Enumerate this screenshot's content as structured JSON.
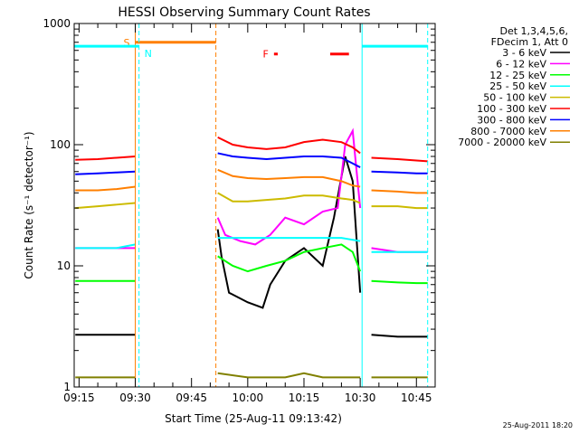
{
  "chart_data": {
    "type": "line",
    "title": "HESSI Observing Summary Count Rates",
    "xlabel": "Start Time (25-Aug-11 09:13:42)",
    "ylabel": "Count Rate (s⁻¹ detector⁻¹)",
    "y_scale": "log",
    "ylim": [
      1,
      1000
    ],
    "xlim": [
      "09:13:42",
      "10:50:00"
    ],
    "x_ticks": [
      "09:15",
      "09:30",
      "09:45",
      "10:00",
      "10:15",
      "10:30",
      "10:45"
    ],
    "y_ticks": [
      "1",
      "10",
      "100",
      "1000"
    ],
    "legend_position": "right",
    "legend_header": [
      "Det 1,3,4,5,6,",
      "FDecim 1, Att 0"
    ],
    "footer_date": "25-Aug-2011 18:20",
    "data_gaps": [
      [
        "09:31:00",
        "09:52:00"
      ],
      [
        "10:30:30",
        "10:33:00"
      ]
    ],
    "flags": {
      "saa": {
        "label": "S",
        "color": "#ff7f00",
        "start": "09:30:00",
        "end": "09:51:30",
        "level": 700
      },
      "night": {
        "label": "N",
        "color": "#00ffff",
        "intervals": [
          [
            "09:13:42",
            "09:31:00"
          ],
          [
            "10:30:30",
            "10:48:00"
          ]
        ],
        "level": 650
      },
      "flare": {
        "label": "F",
        "color": "#ff0000",
        "intervals": [
          [
            "10:07:00",
            "10:08:00"
          ],
          [
            "10:22:00",
            "10:27:00"
          ]
        ],
        "level": 560
      }
    },
    "series": [
      {
        "name": "3 - 6 keV",
        "color": "#000000",
        "x": [
          "09:14",
          "09:20",
          "09:25",
          "09:30",
          "09:52",
          "09:53",
          "09:55",
          "10:00",
          "10:04",
          "10:06",
          "10:10",
          "10:15",
          "10:20",
          "10:23",
          "10:26",
          "10:28",
          "10:30",
          "10:33",
          "10:40",
          "10:45",
          "10:48"
        ],
        "values": [
          2.7,
          2.7,
          2.7,
          2.7,
          20,
          12,
          6,
          5,
          4.5,
          7,
          11,
          14,
          10,
          25,
          80,
          50,
          6,
          2.7,
          2.6,
          2.6,
          2.6
        ]
      },
      {
        "name": "6 - 12 keV",
        "color": "#ff00ff",
        "x": [
          "09:14",
          "09:20",
          "09:25",
          "09:30",
          "09:52",
          "09:54",
          "09:58",
          "10:02",
          "10:06",
          "10:10",
          "10:15",
          "10:20",
          "10:24",
          "10:26",
          "10:28",
          "10:30",
          "10:33",
          "10:40",
          "10:45",
          "10:48"
        ],
        "values": [
          14,
          14,
          14,
          14,
          25,
          18,
          16,
          15,
          18,
          25,
          22,
          28,
          30,
          100,
          130,
          30,
          14,
          13,
          13,
          13
        ]
      },
      {
        "name": "12 - 25 keV",
        "color": "#00ff00",
        "x": [
          "09:14",
          "09:20",
          "09:25",
          "09:30",
          "09:52",
          "09:56",
          "10:00",
          "10:05",
          "10:10",
          "10:15",
          "10:20",
          "10:25",
          "10:28",
          "10:30",
          "10:33",
          "10:40",
          "10:45",
          "10:48"
        ],
        "values": [
          7.5,
          7.5,
          7.5,
          7.5,
          12,
          10,
          9,
          10,
          11,
          13,
          14,
          15,
          13,
          9,
          7.5,
          7.3,
          7.2,
          7.2
        ]
      },
      {
        "name": "25 - 50 keV",
        "color": "#00ffff",
        "x": [
          "09:14",
          "09:20",
          "09:25",
          "09:30",
          "09:52",
          "10:00",
          "10:05",
          "10:10",
          "10:15",
          "10:20",
          "10:25",
          "10:30",
          "10:33",
          "10:40",
          "10:45",
          "10:48"
        ],
        "values": [
          14,
          14,
          14,
          15,
          17,
          17,
          17,
          17,
          17,
          17,
          17,
          16,
          13,
          13,
          13,
          13
        ]
      },
      {
        "name": "50 - 100 keV",
        "color": "#ccbb00",
        "x": [
          "09:14",
          "09:20",
          "09:25",
          "09:30",
          "09:52",
          "09:56",
          "10:00",
          "10:05",
          "10:10",
          "10:15",
          "10:20",
          "10:25",
          "10:28",
          "10:30",
          "10:33",
          "10:40",
          "10:45",
          "10:48"
        ],
        "values": [
          30,
          31,
          32,
          33,
          40,
          34,
          34,
          35,
          36,
          38,
          38,
          36,
          35,
          33,
          31,
          31,
          30,
          30
        ]
      },
      {
        "name": "100 - 300 keV",
        "color": "#ff0000",
        "x": [
          "09:14",
          "09:20",
          "09:25",
          "09:30",
          "09:52",
          "09:56",
          "10:00",
          "10:05",
          "10:10",
          "10:15",
          "10:20",
          "10:25",
          "10:28",
          "10:30",
          "10:33",
          "10:40",
          "10:45",
          "10:48"
        ],
        "values": [
          75,
          76,
          78,
          80,
          115,
          100,
          95,
          92,
          95,
          105,
          110,
          105,
          95,
          85,
          78,
          76,
          74,
          73
        ]
      },
      {
        "name": "300 - 800 keV",
        "color": "#0000ff",
        "x": [
          "09:14",
          "09:20",
          "09:25",
          "09:30",
          "09:52",
          "09:56",
          "10:00",
          "10:05",
          "10:10",
          "10:15",
          "10:20",
          "10:25",
          "10:28",
          "10:30",
          "10:33",
          "10:40",
          "10:45",
          "10:48"
        ],
        "values": [
          57,
          58,
          59,
          60,
          85,
          80,
          78,
          76,
          78,
          80,
          80,
          78,
          70,
          65,
          60,
          59,
          58,
          58
        ]
      },
      {
        "name": "800 - 7000 keV",
        "color": "#ff7f00",
        "x": [
          "09:14",
          "09:20",
          "09:25",
          "09:30",
          "09:52",
          "09:56",
          "10:00",
          "10:05",
          "10:10",
          "10:15",
          "10:20",
          "10:25",
          "10:28",
          "10:30",
          "10:33",
          "10:40",
          "10:45",
          "10:48"
        ],
        "values": [
          42,
          42,
          43,
          45,
          62,
          55,
          53,
          52,
          53,
          54,
          54,
          50,
          46,
          45,
          42,
          41,
          40,
          40
        ]
      },
      {
        "name": "7000 - 20000 keV",
        "color": "#808000",
        "x": [
          "09:14",
          "09:20",
          "09:25",
          "09:30",
          "09:52",
          "10:00",
          "10:05",
          "10:10",
          "10:15",
          "10:20",
          "10:25",
          "10:30",
          "10:33",
          "10:40",
          "10:45",
          "10:48"
        ],
        "values": [
          1.2,
          1.2,
          1.2,
          1.2,
          1.3,
          1.2,
          1.2,
          1.2,
          1.3,
          1.2,
          1.2,
          1.2,
          1.2,
          1.2,
          1.2,
          1.2
        ]
      }
    ]
  }
}
